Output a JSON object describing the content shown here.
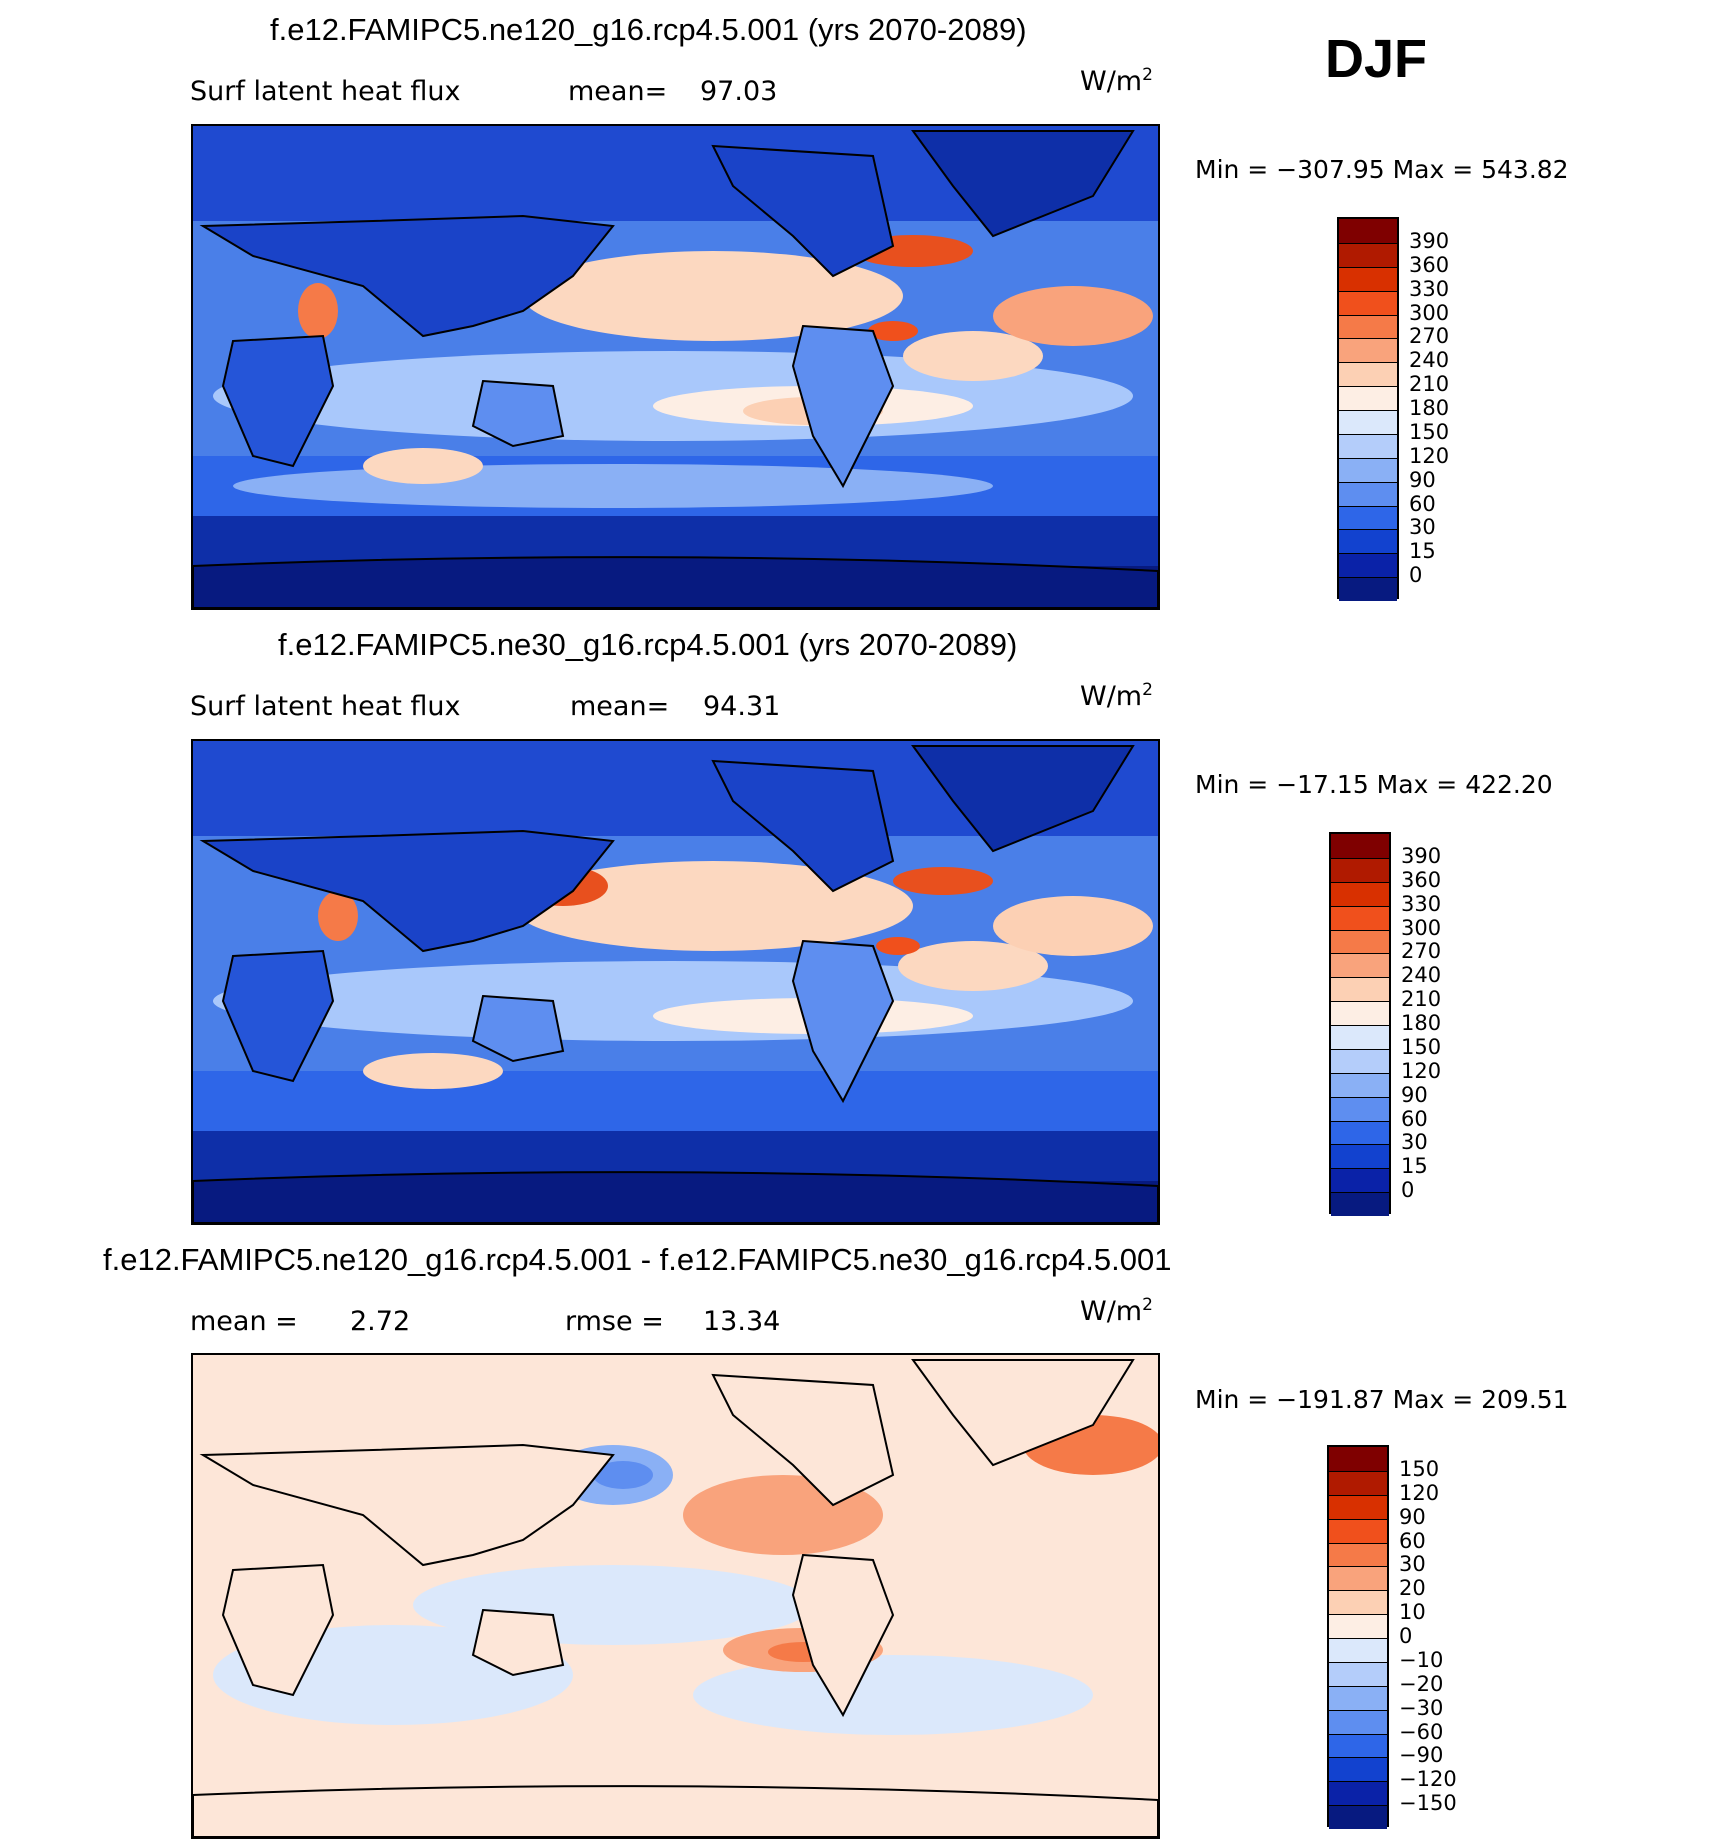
{
  "season": "DJF",
  "panels": [
    {
      "id": "top",
      "title": "f.e12.FAMIPC5.ne120_g16.rcp4.5.001 (yrs 2070-2089)",
      "left_label": "Surf latent heat flux",
      "stat_label": "mean=",
      "stat_value": "97.03",
      "units_base": "W/m",
      "units_exp": "2",
      "minmax": "Min = −307.95 Max = 543.82",
      "colorbar": {
        "labels": [
          "390",
          "360",
          "330",
          "300",
          "270",
          "240",
          "210",
          "180",
          "150",
          "120",
          "90",
          "60",
          "30",
          "15",
          "0"
        ],
        "colors": [
          "#7f0000",
          "#b01a00",
          "#d83000",
          "#f0501c",
          "#f57a48",
          "#f9a37c",
          "#fcd0b4",
          "#fdeee4",
          "#dbe8fb",
          "#b4cdfa",
          "#8ab0f5",
          "#5e8ef0",
          "#2e66e8",
          "#1242cf",
          "#0a22a8",
          "#071a80"
        ]
      },
      "regions": {
        "ocean_base": "#3f74e6",
        "land": "#1a43c8",
        "polar": "#0b2a9a",
        "tropics": "#a9c8fb",
        "subtropics": "#fcd8c0",
        "hotspots": "#e8501e"
      }
    },
    {
      "id": "middle",
      "title": "f.e12.FAMIPC5.ne30_g16.rcp4.5.001 (yrs 2070-2089)",
      "left_label": "Surf latent heat flux",
      "stat_label": "mean=",
      "stat_value": "94.31",
      "units_base": "W/m",
      "units_exp": "2",
      "minmax": "Min = −17.15 Max = 422.20",
      "colorbar": {
        "labels": [
          "390",
          "360",
          "330",
          "300",
          "270",
          "240",
          "210",
          "180",
          "150",
          "120",
          "90",
          "60",
          "30",
          "15",
          "0"
        ],
        "colors": [
          "#7f0000",
          "#b01a00",
          "#d83000",
          "#f0501c",
          "#f57a48",
          "#f9a37c",
          "#fcd0b4",
          "#fdeee4",
          "#dbe8fb",
          "#b4cdfa",
          "#8ab0f5",
          "#5e8ef0",
          "#2e66e8",
          "#1242cf",
          "#0a22a8",
          "#071a80"
        ]
      }
    },
    {
      "id": "bottom",
      "title": "f.e12.FAMIPC5.ne120_g16.rcp4.5.001 - f.e12.FAMIPC5.ne30_g16.rcp4.5.001",
      "left_label": "mean =",
      "left_value": "2.72",
      "stat_label": "rmse =",
      "stat_value": "13.34",
      "units_base": "W/m",
      "units_exp": "2",
      "minmax": "Min = −191.87 Max = 209.51",
      "colorbar": {
        "labels": [
          "150",
          "120",
          "90",
          "60",
          "30",
          "20",
          "10",
          "0",
          "−10",
          "−20",
          "−30",
          "−60",
          "−90",
          "−120",
          "−150"
        ],
        "colors": [
          "#7f0000",
          "#b01a00",
          "#d83000",
          "#f0501c",
          "#f57a48",
          "#f9a37c",
          "#fcd0b4",
          "#fdeee4",
          "#dbe8fb",
          "#b4cdfa",
          "#8ab0f5",
          "#5e8ef0",
          "#2e66e8",
          "#1242cf",
          "#0a22a8",
          "#071a80"
        ]
      }
    }
  ]
}
